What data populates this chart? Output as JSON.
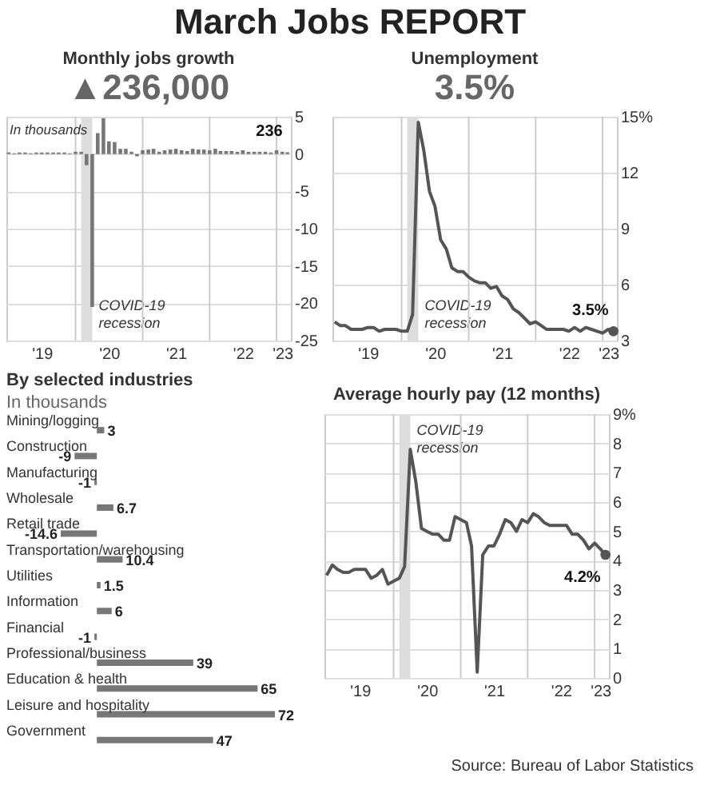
{
  "chart_data": [
    {
      "type": "other",
      "title": "March Jobs REPORT",
      "annotations": [
        "Source: Bureau of Labor Statistics"
      ]
    },
    {
      "type": "bar",
      "title": "Monthly jobs growth",
      "subtitle": "▲236,000",
      "x": [
        "2019-01",
        "2019-02",
        "2019-03",
        "2019-04",
        "2019-05",
        "2019-06",
        "2019-07",
        "2019-08",
        "2019-09",
        "2019-10",
        "2019-11",
        "2019-12",
        "2020-01",
        "2020-02",
        "2020-03",
        "2020-04",
        "2020-05",
        "2020-06",
        "2020-07",
        "2020-08",
        "2020-09",
        "2020-10",
        "2020-11",
        "2020-12",
        "2021-01",
        "2021-02",
        "2021-03",
        "2021-04",
        "2021-05",
        "2021-06",
        "2021-07",
        "2021-08",
        "2021-09",
        "2021-10",
        "2021-11",
        "2021-12",
        "2022-01",
        "2022-02",
        "2022-03",
        "2022-04",
        "2022-05",
        "2022-06",
        "2022-07",
        "2022-08",
        "2022-09",
        "2022-10",
        "2022-11",
        "2022-12",
        "2023-01",
        "2023-02",
        "2023-03"
      ],
      "series": [
        {
          "color": "#777777",
          "values": [
            0.2,
            0.1,
            0.2,
            0.2,
            0.1,
            0.2,
            0.2,
            0.2,
            0.2,
            0.2,
            0.2,
            0.1,
            0.3,
            0.3,
            -1.5,
            -20.5,
            2.8,
            4.8,
            1.7,
            1.6,
            0.7,
            0.7,
            0.3,
            -0.3,
            0.5,
            0.6,
            0.7,
            0.3,
            0.5,
            0.6,
            0.7,
            0.5,
            0.4,
            0.7,
            0.6,
            0.6,
            0.5,
            0.7,
            0.4,
            0.4,
            0.4,
            0.3,
            0.5,
            0.3,
            0.3,
            0.3,
            0.3,
            0.2,
            0.5,
            0.3,
            0.236
          ]
        }
      ],
      "xlim": [
        "2018-12-20",
        "2023-03-20"
      ],
      "xticks": [
        {
          "value": "2019-07",
          "label": "'19"
        },
        {
          "value": "2020-07",
          "label": "'20"
        },
        {
          "value": "2021-07",
          "label": "'21"
        },
        {
          "value": "2022-07",
          "label": "'22"
        },
        {
          "value": "2023-02",
          "label": "'23"
        }
      ],
      "ylim": [
        -25,
        5
      ],
      "yticks": [
        5,
        0,
        -5,
        -10,
        -15,
        -20,
        -25
      ],
      "grid": "y",
      "ref_lines": [
        {
          "axis": "x",
          "value": "2020-01",
          "color": "#cccccc"
        },
        {
          "axis": "x",
          "value": "2021-01",
          "color": "#cccccc"
        },
        {
          "axis": "x",
          "value": "2022-01",
          "color": "#cccccc"
        },
        {
          "axis": "x",
          "value": "2023-01",
          "color": "#cccccc"
        }
      ],
      "bands": [
        {
          "axis": "x",
          "from": "2020-02",
          "to": "2020-04",
          "label": "COVID-19 recession",
          "color": "#dddddd"
        }
      ],
      "annotations": [
        "In thousands",
        {
          "text": "236",
          "x": "2023-03",
          "y": 0.236
        }
      ]
    },
    {
      "type": "line",
      "title": "Unemployment",
      "subtitle": "3.5%",
      "x": [
        "2019-01",
        "2019-02",
        "2019-03",
        "2019-04",
        "2019-05",
        "2019-06",
        "2019-07",
        "2019-08",
        "2019-09",
        "2019-10",
        "2019-11",
        "2019-12",
        "2020-01",
        "2020-02",
        "2020-03",
        "2020-04",
        "2020-05",
        "2020-06",
        "2020-07",
        "2020-08",
        "2020-09",
        "2020-10",
        "2020-11",
        "2020-12",
        "2021-01",
        "2021-02",
        "2021-03",
        "2021-04",
        "2021-05",
        "2021-06",
        "2021-07",
        "2021-08",
        "2021-09",
        "2021-10",
        "2021-11",
        "2021-12",
        "2022-01",
        "2022-02",
        "2022-03",
        "2022-04",
        "2022-05",
        "2022-06",
        "2022-07",
        "2022-08",
        "2022-09",
        "2022-10",
        "2022-11",
        "2022-12",
        "2023-01",
        "2023-02",
        "2023-03"
      ],
      "series": [
        {
          "color": "#555555",
          "values": [
            4.0,
            3.8,
            3.8,
            3.6,
            3.6,
            3.6,
            3.7,
            3.7,
            3.5,
            3.6,
            3.6,
            3.6,
            3.5,
            3.5,
            4.4,
            14.7,
            13.2,
            11.0,
            10.2,
            8.4,
            7.9,
            6.9,
            6.7,
            6.7,
            6.4,
            6.2,
            6.1,
            6.1,
            5.8,
            5.9,
            5.4,
            5.2,
            4.7,
            4.5,
            4.2,
            3.9,
            4.0,
            3.8,
            3.6,
            3.6,
            3.6,
            3.6,
            3.5,
            3.7,
            3.5,
            3.7,
            3.6,
            3.5,
            3.4,
            3.6,
            3.5
          ]
        }
      ],
      "xlim": [
        "2018-12-20",
        "2023-03-20"
      ],
      "xticks": [
        {
          "value": "2019-07",
          "label": "'19"
        },
        {
          "value": "2020-07",
          "label": "'20"
        },
        {
          "value": "2021-07",
          "label": "'21"
        },
        {
          "value": "2022-07",
          "label": "'22"
        },
        {
          "value": "2023-02",
          "label": "'23"
        }
      ],
      "ylim": [
        3,
        15
      ],
      "yticks": [
        3,
        6,
        9,
        12,
        {
          "value": 15,
          "label": "15%"
        }
      ],
      "grid": "y",
      "marker": "none",
      "line_style": "solid",
      "ref_lines": [
        {
          "axis": "x",
          "value": "2020-01",
          "color": "#cccccc"
        },
        {
          "axis": "x",
          "value": "2021-01",
          "color": "#cccccc"
        },
        {
          "axis": "x",
          "value": "2022-01",
          "color": "#cccccc"
        },
        {
          "axis": "x",
          "value": "2023-01",
          "color": "#cccccc"
        }
      ],
      "bands": [
        {
          "axis": "x",
          "from": "2020-02",
          "to": "2020-04",
          "label": "COVID-19 recession",
          "color": "#dddddd"
        }
      ],
      "annotations": [
        {
          "text": "3.5%",
          "x": "2023-03",
          "y": 3.5
        }
      ]
    },
    {
      "type": "bar",
      "orientation": "horizontal",
      "title": "By selected industries",
      "subtitle": "In thousands",
      "categories": [
        "Mining/logging",
        "Construction",
        "Manufacturing",
        "Wholesale",
        "Retail trade",
        "Transportation/warehousing",
        "Utilities",
        "Information",
        "Financial",
        "Professional/business",
        "Education & health",
        "Leisure and hospitality",
        "Government"
      ],
      "values": [
        3,
        -9,
        -1,
        6.7,
        -14.6,
        10.4,
        1.5,
        6,
        -1,
        39,
        65,
        72,
        47
      ],
      "colors": [
        "#777777",
        "#777777",
        "#777777",
        "#777777",
        "#777777",
        "#777777",
        "#777777",
        "#777777",
        "#777777",
        "#777777",
        "#777777",
        "#777777",
        "#777777"
      ],
      "data_labels": true,
      "tick_labels": false
    },
    {
      "type": "line",
      "title": "Average hourly pay (12 months)",
      "x": [
        "2019-01",
        "2019-02",
        "2019-03",
        "2019-04",
        "2019-05",
        "2019-06",
        "2019-07",
        "2019-08",
        "2019-09",
        "2019-10",
        "2019-11",
        "2019-12",
        "2020-01",
        "2020-02",
        "2020-03",
        "2020-04",
        "2020-05",
        "2020-06",
        "2020-07",
        "2020-08",
        "2020-09",
        "2020-10",
        "2020-11",
        "2020-12",
        "2021-01",
        "2021-02",
        "2021-03",
        "2021-04",
        "2021-05",
        "2021-06",
        "2021-07",
        "2021-08",
        "2021-09",
        "2021-10",
        "2021-11",
        "2021-12",
        "2022-01",
        "2022-02",
        "2022-03",
        "2022-04",
        "2022-05",
        "2022-06",
        "2022-07",
        "2022-08",
        "2022-09",
        "2022-10",
        "2022-11",
        "2022-12",
        "2023-01",
        "2023-02",
        "2023-03"
      ],
      "series": [
        {
          "color": "#555555",
          "values": [
            3.5,
            3.85,
            3.7,
            3.6,
            3.6,
            3.7,
            3.7,
            3.7,
            3.4,
            3.5,
            3.7,
            3.2,
            3.3,
            3.4,
            3.8,
            7.8,
            6.7,
            5.1,
            5.0,
            4.9,
            4.9,
            4.7,
            4.7,
            5.5,
            5.4,
            5.3,
            4.5,
            0.2,
            4.2,
            4.5,
            4.5,
            4.9,
            5.4,
            5.3,
            5.0,
            5.4,
            5.3,
            5.6,
            5.5,
            5.3,
            5.2,
            5.2,
            5.2,
            5.2,
            4.9,
            4.9,
            4.7,
            4.4,
            4.6,
            4.4,
            4.2
          ]
        }
      ],
      "xlim": [
        "2018-12-20",
        "2023-03-20"
      ],
      "xticks": [
        {
          "value": "2019-07",
          "label": "'19"
        },
        {
          "value": "2020-07",
          "label": "'20"
        },
        {
          "value": "2021-07",
          "label": "'21"
        },
        {
          "value": "2022-07",
          "label": "'22"
        },
        {
          "value": "2023-02",
          "label": "'23"
        }
      ],
      "ylim": [
        0,
        9
      ],
      "yticks": [
        0,
        1,
        2,
        3,
        4,
        5,
        6,
        7,
        8,
        {
          "value": 9,
          "label": "9%"
        }
      ],
      "grid": "y",
      "marker": "none",
      "line_style": "solid",
      "ref_lines": [
        {
          "axis": "x",
          "value": "2020-01",
          "color": "#cccccc"
        },
        {
          "axis": "x",
          "value": "2021-01",
          "color": "#cccccc"
        },
        {
          "axis": "x",
          "value": "2022-01",
          "color": "#cccccc"
        },
        {
          "axis": "x",
          "value": "2023-01",
          "color": "#cccccc"
        }
      ],
      "bands": [
        {
          "axis": "x",
          "from": "2020-02",
          "to": "2020-04",
          "label": "COVID-19 recession",
          "color": "#dddddd"
        }
      ],
      "annotations": [
        {
          "text": "4.2%",
          "x": "2023-03",
          "y": 4.2
        }
      ]
    }
  ]
}
